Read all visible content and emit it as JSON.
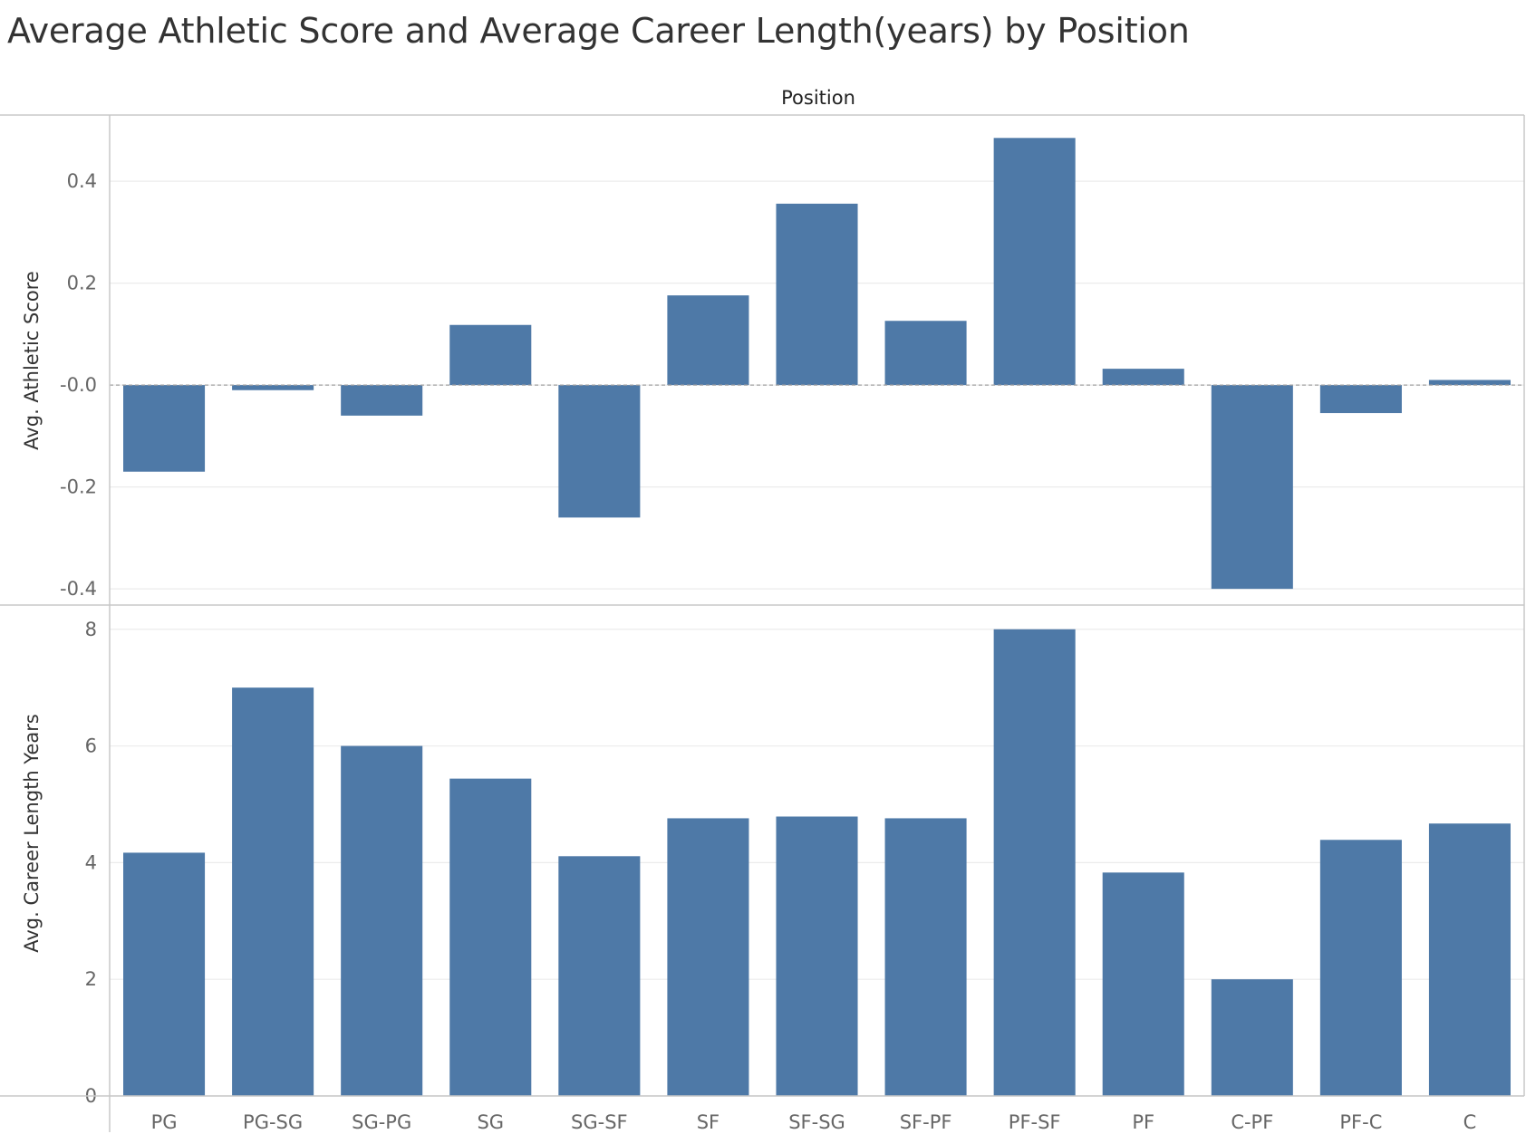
{
  "title": "Average Athletic Score and Average Career Length(years) by Position",
  "column_header": "Position",
  "colors": {
    "bar": "#4e79a7",
    "grid": "#ebebeb",
    "border": "#c8c8c8",
    "zero_line": "#a0a0a0"
  },
  "chart_data": [
    {
      "type": "bar",
      "categories": [
        "PG",
        "PG-SG",
        "SG-PG",
        "SG",
        "SG-SF",
        "SF",
        "SF-SG",
        "SF-PF",
        "PF-SF",
        "PF",
        "C-PF",
        "PF-C",
        "C"
      ],
      "values": [
        -0.17,
        -0.01,
        -0.06,
        0.118,
        -0.26,
        0.176,
        0.356,
        0.126,
        0.485,
        0.032,
        -0.4,
        -0.055,
        0.01
      ],
      "ylabel": "Avg. Athletic Score",
      "xlabel": "Position",
      "ylim": [
        -0.43,
        0.53
      ],
      "yticks": [
        0.4,
        0.2,
        0.0,
        -0.2,
        -0.4
      ],
      "ytick_labels": [
        "0.4",
        "0.2",
        "-0.0",
        "-0.2",
        "-0.4"
      ],
      "zero_line": true,
      "grid": true
    },
    {
      "type": "bar",
      "categories": [
        "PG",
        "PG-SG",
        "SG-PG",
        "SG",
        "SG-SF",
        "SF",
        "SF-SG",
        "SF-PF",
        "PF-SF",
        "PF",
        "C-PF",
        "PF-C",
        "C"
      ],
      "values": [
        4.17,
        7.0,
        6.0,
        5.44,
        4.11,
        4.76,
        4.79,
        4.76,
        8.0,
        3.83,
        2.0,
        4.39,
        4.67
      ],
      "ylabel": "Avg. Career Length Years",
      "xlabel": "Position",
      "ylim": [
        0,
        8.4
      ],
      "yticks": [
        8,
        6,
        4,
        2,
        0
      ],
      "ytick_labels": [
        "8",
        "6",
        "4",
        "2",
        "0"
      ],
      "grid": true
    }
  ]
}
